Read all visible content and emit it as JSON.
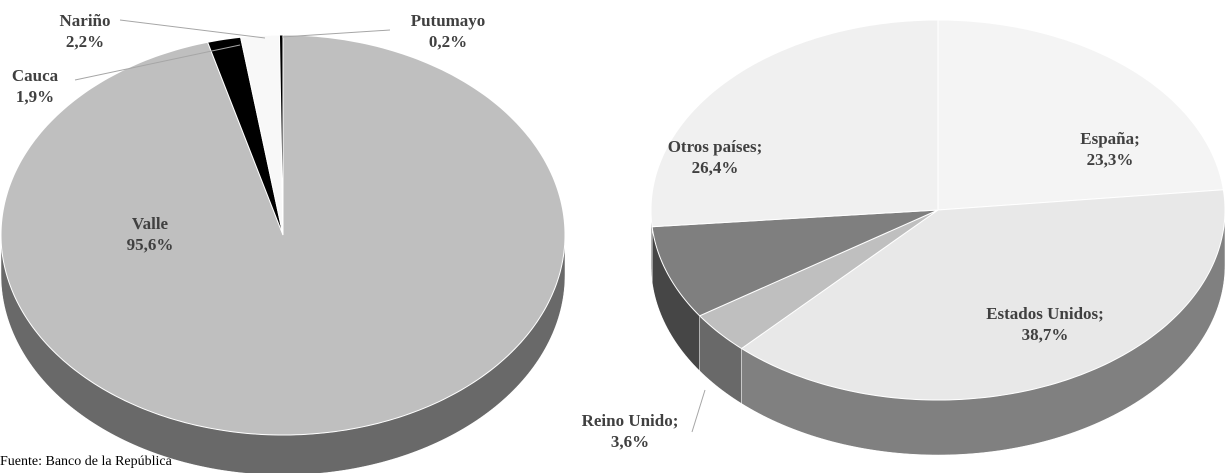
{
  "source": "Fuente: Banco de la República",
  "chart_data": [
    {
      "type": "pie3d",
      "categories": [
        "Valle",
        "Cauca",
        "Nariño",
        "Putumayo"
      ],
      "values": [
        95.6,
        1.9,
        2.2,
        0.2
      ],
      "value_labels": [
        "95,6%",
        "1,9%",
        "2,2%",
        "0,2%"
      ],
      "colors": [
        "#bfbfbf",
        "#000000",
        "#f8f8f8",
        "#000000"
      ]
    },
    {
      "type": "pie3d",
      "categories": [
        "España;",
        "Estados Unidos;",
        "Reino Unido;",
        null,
        "Otros países;"
      ],
      "values": [
        23.3,
        38.7,
        3.6,
        8.0,
        26.4
      ],
      "value_labels": [
        "23,3%",
        "38,7%",
        "3,6%",
        null,
        "26,4%"
      ],
      "colors": [
        "#f4f4f4",
        "#e8e8e8",
        "#bfbfbf",
        "#7f7f7f",
        "#f0f0f0"
      ]
    }
  ]
}
